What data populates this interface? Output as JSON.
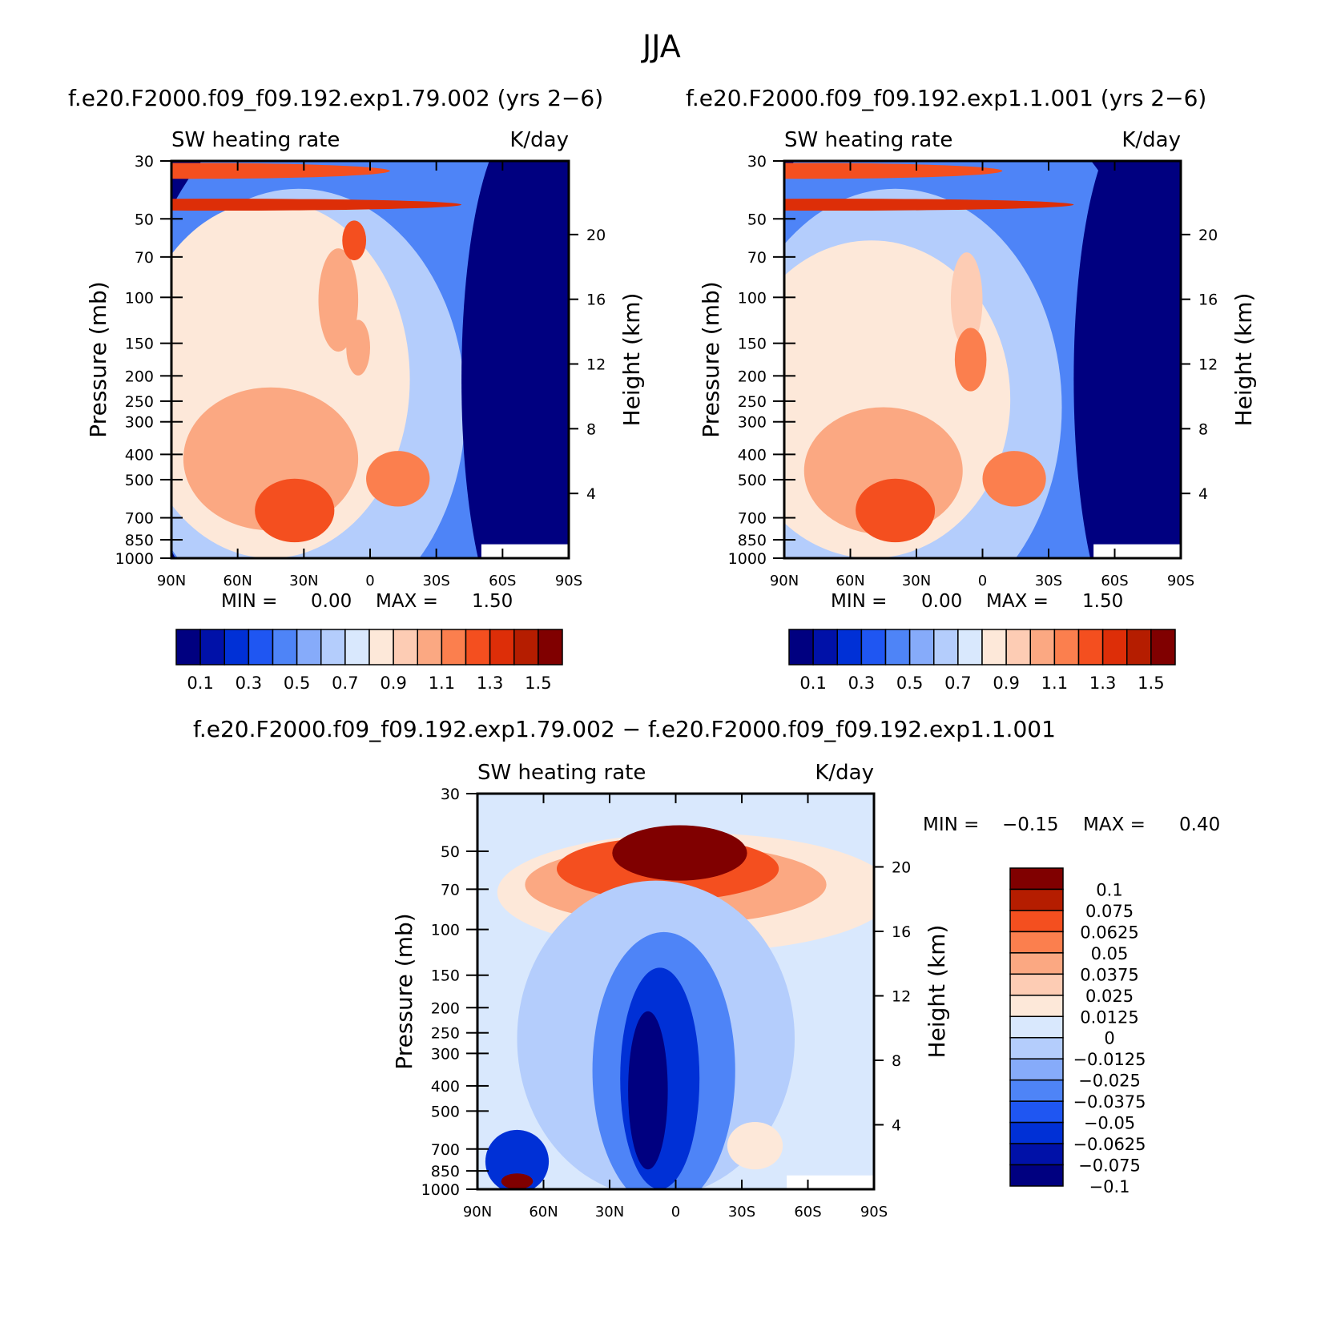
{
  "figure": {
    "season": "JJA",
    "run1": "f.e20.F2000.f09_f09.192.exp1.79.002",
    "run2": "f.e20.F2000.f09_f09.192.exp1.1.001",
    "run1_title": "f.e20.F2000.f09_f09.192.exp1.79.002 (yrs 2−6)",
    "run2_title": "f.e20.F2000.f09_f09.192.exp1.1.001 (yrs 2−6)",
    "diff_title": "f.e20.F2000.f09_f09.192.exp1.79.002 − f.e20.F2000.f09_f09.192.exp1.1.001"
  },
  "chart_data": [
    {
      "type": "heatmap",
      "title": "f.e20.F2000.f09_f09.192.exp1.79.002 (yrs 2−6)",
      "variable": "SW heating rate",
      "units": "K/day",
      "xlabel": "",
      "ylabel": "Pressure (mb)",
      "y2label": "Height (km)",
      "x_ticks": [
        "90N",
        "60N",
        "30N",
        "0",
        "30S",
        "60S",
        "90S"
      ],
      "y_ticks": [
        "30",
        "50",
        "70",
        "100",
        "150",
        "200",
        "250",
        "300",
        "400",
        "500",
        "700",
        "850",
        "1000"
      ],
      "y2_ticks": [
        "20",
        "16",
        "12",
        "8",
        "4"
      ],
      "y_scale": "log",
      "stats": {
        "min_label": "MIN =",
        "min": "0.00",
        "max_label": "MAX =",
        "max": "1.50"
      },
      "colorbar": {
        "labels": [
          "0.1",
          "0.3",
          "0.5",
          "0.7",
          "0.9",
          "1.1",
          "1.3",
          "1.5"
        ],
        "colors": [
          "#000080",
          "#0011a8",
          "#0030d6",
          "#1f56f2",
          "#4e84f7",
          "#86abfa",
          "#b4cdfc",
          "#d9e8fd",
          "#fde8d9",
          "#fdccb4",
          "#fba882",
          "#fb7f4e",
          "#f44f1f",
          "#dd2e08",
          "#b51d00",
          "#800000"
        ]
      }
    },
    {
      "type": "heatmap",
      "title": "f.e20.F2000.f09_f09.192.exp1.1.001 (yrs 2−6)",
      "variable": "SW heating rate",
      "units": "K/day",
      "xlabel": "",
      "ylabel": "Pressure (mb)",
      "y2label": "Height (km)",
      "x_ticks": [
        "90N",
        "60N",
        "30N",
        "0",
        "30S",
        "60S",
        "90S"
      ],
      "y_ticks": [
        "30",
        "50",
        "70",
        "100",
        "150",
        "200",
        "250",
        "300",
        "400",
        "500",
        "700",
        "850",
        "1000"
      ],
      "y2_ticks": [
        "20",
        "16",
        "12",
        "8",
        "4"
      ],
      "y_scale": "log",
      "stats": {
        "min_label": "MIN =",
        "min": "0.00",
        "max_label": "MAX =",
        "max": "1.50"
      },
      "colorbar": {
        "labels": [
          "0.1",
          "0.3",
          "0.5",
          "0.7",
          "0.9",
          "1.1",
          "1.3",
          "1.5"
        ],
        "colors": [
          "#000080",
          "#0011a8",
          "#0030d6",
          "#1f56f2",
          "#4e84f7",
          "#86abfa",
          "#b4cdfc",
          "#d9e8fd",
          "#fde8d9",
          "#fdccb4",
          "#fba882",
          "#fb7f4e",
          "#f44f1f",
          "#dd2e08",
          "#b51d00",
          "#800000"
        ]
      }
    },
    {
      "type": "heatmap",
      "title": "f.e20.F2000.f09_f09.192.exp1.79.002 − f.e20.F2000.f09_f09.192.exp1.1.001",
      "variable": "SW heating rate",
      "units": "K/day",
      "xlabel": "",
      "ylabel": "Pressure (mb)",
      "y2label": "Height (km)",
      "x_ticks": [
        "90N",
        "60N",
        "30N",
        "0",
        "30S",
        "60S",
        "90S"
      ],
      "y_ticks": [
        "30",
        "50",
        "70",
        "100",
        "150",
        "200",
        "250",
        "300",
        "400",
        "500",
        "700",
        "850",
        "1000"
      ],
      "y2_ticks": [
        "20",
        "16",
        "12",
        "8",
        "4"
      ],
      "y_scale": "log",
      "stats": {
        "min_label": "MIN =",
        "min": "−0.15",
        "max_label": "MAX =",
        "max": "0.40"
      },
      "colorbar": {
        "labels": [
          "0.1",
          "0.075",
          "0.0625",
          "0.05",
          "0.0375",
          "0.025",
          "0.0125",
          "0",
          "−0.0125",
          "−0.025",
          "−0.0375",
          "−0.05",
          "−0.0625",
          "−0.075",
          "−0.1"
        ],
        "colors": [
          "#800000",
          "#b51d00",
          "#f44f1f",
          "#fb7f4e",
          "#fba882",
          "#fdccb4",
          "#fde8d9",
          "#d9e8fd",
          "#b4cdfc",
          "#86abfa",
          "#4e84f7",
          "#1f56f2",
          "#0030d6",
          "#0011a8",
          "#000080"
        ]
      }
    }
  ]
}
